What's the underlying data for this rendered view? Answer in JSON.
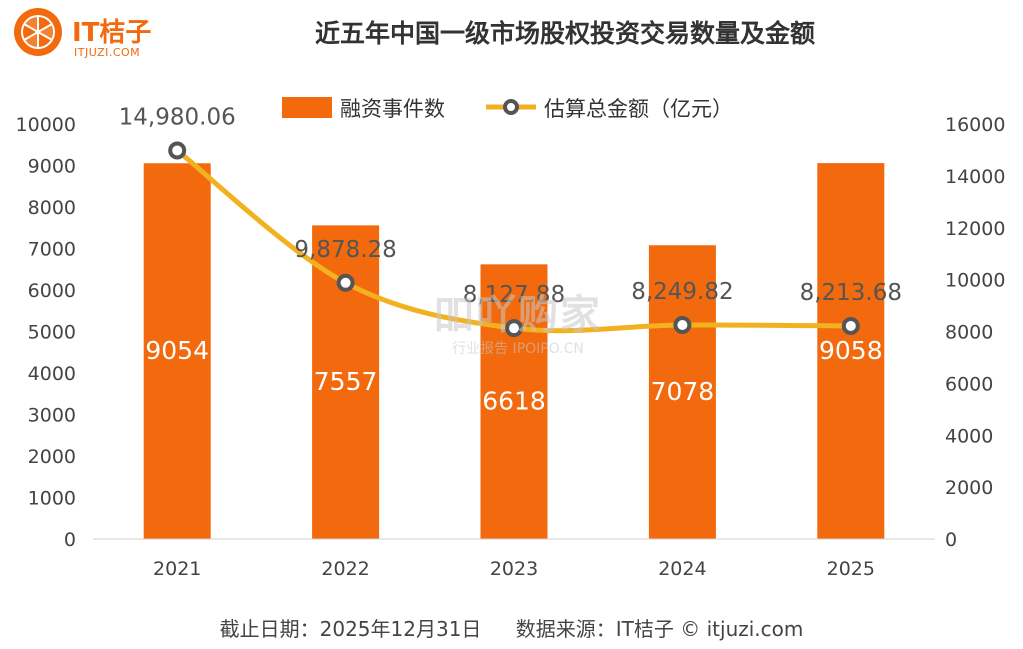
{
  "logo": {
    "brand": "IT桔子",
    "url": "ITJUZI.COM"
  },
  "title": "近五年中国一级市场股权投资交易数量及金额",
  "footer": {
    "date": "截止日期：2025年12月31日",
    "source": "数据来源：IT桔子 © itjuzi.com"
  },
  "watermark": {
    "main": "吅吖购家",
    "sub": "行业报告 IPOIPO.CN"
  },
  "colors": {
    "bar": "#f26a0d",
    "line": "#f2b21f",
    "brand": "#f26a0d"
  },
  "chart_data": {
    "type": "bar",
    "categories": [
      "2021",
      "2022",
      "2023",
      "2024",
      "2025"
    ],
    "series": [
      {
        "name": "融资事件数",
        "type": "bar",
        "axis": "left",
        "values": [
          9054,
          7557,
          6618,
          7078,
          9058
        ],
        "labels": [
          "9054",
          "7557",
          "6618",
          "7078",
          "9058"
        ]
      },
      {
        "name": "估算总金额（亿元）",
        "type": "line",
        "axis": "right",
        "values": [
          14980.06,
          9878.28,
          8127.88,
          8249.82,
          8213.68
        ],
        "labels": [
          "14,980.06",
          "9,878.28",
          "8,127.88",
          "8,249.82",
          "8,213.68"
        ]
      }
    ],
    "y_left": {
      "min": 0,
      "max": 10000,
      "ticks": [
        "0",
        "1000",
        "2000",
        "3000",
        "4000",
        "5000",
        "6000",
        "7000",
        "8000",
        "9000",
        "10000"
      ]
    },
    "y_right": {
      "min": 0,
      "max": 16000,
      "ticks": [
        "0",
        "2000",
        "4000",
        "6000",
        "8000",
        "10000",
        "12000",
        "14000",
        "16000"
      ]
    },
    "grid": false,
    "legend": "top-center"
  }
}
